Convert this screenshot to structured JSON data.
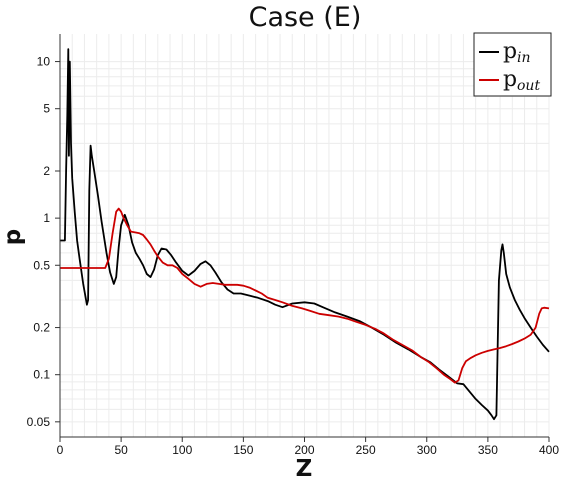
{
  "chart_data": {
    "type": "line",
    "title": "Case (E)",
    "xlabel": "Z",
    "ylabel": "p",
    "xlim": [
      0,
      400
    ],
    "ylim": [
      0.04,
      15
    ],
    "y_scale": "log",
    "grid": true,
    "legend_position": "top-right",
    "x_ticks": [
      0,
      50,
      100,
      150,
      200,
      250,
      300,
      350,
      400
    ],
    "x_tick_labels": [
      "0",
      "50",
      "100",
      "150",
      "200",
      "250",
      "300",
      "350",
      "400"
    ],
    "y_ticks": [
      0.05,
      0.1,
      0.2,
      0.5,
      1,
      2,
      5,
      10
    ],
    "y_tick_labels": [
      "0.05",
      "0.1",
      "0.2",
      "0.5",
      "1",
      "2",
      "5",
      "10"
    ],
    "series": [
      {
        "name": "p_in",
        "legend_main": "p",
        "legend_sub": "in",
        "color": "#000000",
        "points": [
          [
            0,
            0.72
          ],
          [
            4,
            0.72
          ],
          [
            5,
            2.0
          ],
          [
            6,
            4.5
          ],
          [
            6.8,
            12
          ],
          [
            7.3,
            2.5
          ],
          [
            8,
            10
          ],
          [
            9,
            3.0
          ],
          [
            10,
            1.8
          ],
          [
            12,
            1.1
          ],
          [
            14,
            0.72
          ],
          [
            16,
            0.55
          ],
          [
            19,
            0.38
          ],
          [
            22,
            0.28
          ],
          [
            23,
            0.3
          ],
          [
            24,
            1.5
          ],
          [
            25,
            2.9
          ],
          [
            26,
            2.5
          ],
          [
            28,
            2.0
          ],
          [
            31,
            1.4
          ],
          [
            34,
            0.95
          ],
          [
            38,
            0.6
          ],
          [
            41,
            0.45
          ],
          [
            44,
            0.38
          ],
          [
            46,
            0.42
          ],
          [
            48,
            0.65
          ],
          [
            50,
            0.9
          ],
          [
            53,
            1.05
          ],
          [
            56,
            0.9
          ],
          [
            59,
            0.7
          ],
          [
            62,
            0.6
          ],
          [
            65,
            0.55
          ],
          [
            68,
            0.5
          ],
          [
            71,
            0.44
          ],
          [
            74,
            0.42
          ],
          [
            77,
            0.47
          ],
          [
            80,
            0.58
          ],
          [
            83,
            0.64
          ],
          [
            87,
            0.63
          ],
          [
            91,
            0.58
          ],
          [
            95,
            0.52
          ],
          [
            100,
            0.46
          ],
          [
            105,
            0.43
          ],
          [
            110,
            0.46
          ],
          [
            115,
            0.51
          ],
          [
            119,
            0.53
          ],
          [
            123,
            0.5
          ],
          [
            127,
            0.45
          ],
          [
            132,
            0.39
          ],
          [
            137,
            0.35
          ],
          [
            142,
            0.33
          ],
          [
            148,
            0.33
          ],
          [
            155,
            0.32
          ],
          [
            162,
            0.31
          ],
          [
            170,
            0.295
          ],
          [
            176,
            0.28
          ],
          [
            182,
            0.27
          ],
          [
            190,
            0.285
          ],
          [
            200,
            0.29
          ],
          [
            208,
            0.285
          ],
          [
            215,
            0.27
          ],
          [
            225,
            0.25
          ],
          [
            235,
            0.235
          ],
          [
            245,
            0.22
          ],
          [
            255,
            0.2
          ],
          [
            265,
            0.18
          ],
          [
            275,
            0.16
          ],
          [
            285,
            0.145
          ],
          [
            295,
            0.13
          ],
          [
            303,
            0.12
          ],
          [
            310,
            0.108
          ],
          [
            318,
            0.097
          ],
          [
            325,
            0.088
          ],
          [
            330,
            0.087
          ],
          [
            335,
            0.078
          ],
          [
            340,
            0.07
          ],
          [
            345,
            0.064
          ],
          [
            350,
            0.059
          ],
          [
            353,
            0.055
          ],
          [
            355,
            0.052
          ],
          [
            357,
            0.055
          ],
          [
            359,
            0.4
          ],
          [
            361,
            0.62
          ],
          [
            362,
            0.68
          ],
          [
            363,
            0.6
          ],
          [
            365,
            0.44
          ],
          [
            368,
            0.36
          ],
          [
            372,
            0.3
          ],
          [
            376,
            0.26
          ],
          [
            380,
            0.23
          ],
          [
            385,
            0.2
          ],
          [
            390,
            0.175
          ],
          [
            395,
            0.155
          ],
          [
            400,
            0.14
          ]
        ]
      },
      {
        "name": "p_out",
        "legend_main": "p",
        "legend_sub": "out",
        "color": "#cc0000",
        "points": [
          [
            0,
            0.48
          ],
          [
            10,
            0.48
          ],
          [
            20,
            0.48
          ],
          [
            30,
            0.48
          ],
          [
            37,
            0.48
          ],
          [
            40,
            0.55
          ],
          [
            43,
            0.8
          ],
          [
            46,
            1.1
          ],
          [
            48,
            1.15
          ],
          [
            50,
            1.1
          ],
          [
            52,
            1.0
          ],
          [
            55,
            0.9
          ],
          [
            58,
            0.82
          ],
          [
            62,
            0.81
          ],
          [
            65,
            0.8
          ],
          [
            68,
            0.78
          ],
          [
            71,
            0.73
          ],
          [
            74,
            0.68
          ],
          [
            77,
            0.62
          ],
          [
            80,
            0.57
          ],
          [
            84,
            0.52
          ],
          [
            88,
            0.5
          ],
          [
            92,
            0.5
          ],
          [
            96,
            0.48
          ],
          [
            100,
            0.44
          ],
          [
            105,
            0.41
          ],
          [
            110,
            0.38
          ],
          [
            115,
            0.365
          ],
          [
            120,
            0.38
          ],
          [
            125,
            0.385
          ],
          [
            130,
            0.38
          ],
          [
            135,
            0.375
          ],
          [
            140,
            0.375
          ],
          [
            145,
            0.375
          ],
          [
            150,
            0.37
          ],
          [
            155,
            0.36
          ],
          [
            160,
            0.345
          ],
          [
            165,
            0.33
          ],
          [
            170,
            0.31
          ],
          [
            176,
            0.3
          ],
          [
            182,
            0.29
          ],
          [
            190,
            0.275
          ],
          [
            198,
            0.265
          ],
          [
            205,
            0.255
          ],
          [
            212,
            0.245
          ],
          [
            220,
            0.24
          ],
          [
            228,
            0.235
          ],
          [
            235,
            0.228
          ],
          [
            242,
            0.218
          ],
          [
            250,
            0.208
          ],
          [
            258,
            0.196
          ],
          [
            265,
            0.183
          ],
          [
            272,
            0.168
          ],
          [
            280,
            0.155
          ],
          [
            288,
            0.143
          ],
          [
            295,
            0.13
          ],
          [
            302,
            0.12
          ],
          [
            308,
            0.11
          ],
          [
            314,
            0.1
          ],
          [
            319,
            0.094
          ],
          [
            323,
            0.089
          ],
          [
            326,
            0.092
          ],
          [
            329,
            0.11
          ],
          [
            332,
            0.122
          ],
          [
            336,
            0.128
          ],
          [
            340,
            0.133
          ],
          [
            345,
            0.138
          ],
          [
            350,
            0.142
          ],
          [
            355,
            0.145
          ],
          [
            360,
            0.148
          ],
          [
            365,
            0.152
          ],
          [
            370,
            0.157
          ],
          [
            375,
            0.163
          ],
          [
            380,
            0.17
          ],
          [
            385,
            0.18
          ],
          [
            389,
            0.2
          ],
          [
            392,
            0.245
          ],
          [
            394,
            0.265
          ],
          [
            396,
            0.268
          ],
          [
            400,
            0.265
          ]
        ]
      }
    ]
  }
}
